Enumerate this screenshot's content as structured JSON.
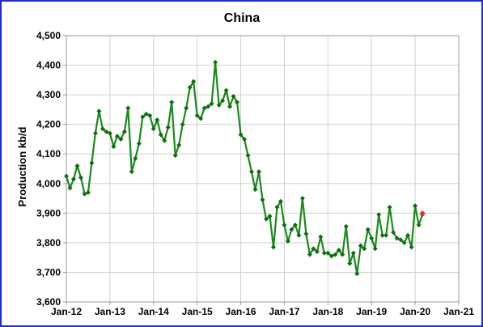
{
  "chart_data": {
    "type": "line",
    "title": "China",
    "xlabel": "",
    "ylabel": "Production kb/d",
    "ylim": [
      3600,
      4500
    ],
    "yticks": [
      3600,
      3700,
      3800,
      3900,
      4000,
      4100,
      4200,
      4300,
      4400,
      4500
    ],
    "ytick_labels": [
      "3,600",
      "3,700",
      "3,800",
      "3,900",
      "4,000",
      "4,100",
      "4,200",
      "4,300",
      "4,400",
      "4,500"
    ],
    "xticks": [
      "Jan-12",
      "Jan-13",
      "Jan-14",
      "Jan-15",
      "Jan-16",
      "Jan-17",
      "Jan-18",
      "Jan-19",
      "Jan-20",
      "Jan-21"
    ],
    "grid": true,
    "legend": "none",
    "colors": {
      "line": "#1a8a1a",
      "marker": "#0d6e0d",
      "highlight": "#ff2a2a",
      "frame": "#1f2bd6"
    },
    "series": [
      {
        "start": "Jan-12",
        "frequency": "monthly",
        "values": [
          4025,
          3985,
          4015,
          4060,
          4020,
          3965,
          3970,
          4070,
          4170,
          4245,
          4185,
          4175,
          4170,
          4125,
          4160,
          4150,
          4175,
          4255,
          4040,
          4085,
          4135,
          4225,
          4235,
          4230,
          4185,
          4215,
          4165,
          4145,
          4190,
          4275,
          4095,
          4130,
          4200,
          4255,
          4325,
          4345,
          4230,
          4220,
          4255,
          4260,
          4270,
          4410,
          4265,
          4280,
          4315,
          4260,
          4295,
          4275,
          4165,
          4150,
          4095,
          4040,
          3980,
          4040,
          3945,
          3880,
          3890,
          3785,
          3920,
          3940,
          3860,
          3805,
          3845,
          3860,
          3825,
          3950,
          3830,
          3760,
          3780,
          3770,
          3820,
          3765,
          3765,
          3755,
          3760,
          3775,
          3760,
          3855,
          3730,
          3765,
          3695,
          3790,
          3780,
          3845,
          3815,
          3780,
          3895,
          3825,
          3825,
          3920,
          3835,
          3815,
          3810,
          3800,
          3825,
          3785,
          3925,
          3860,
          3895
        ]
      },
      {
        "name": "",
        "points": [
          {
            "x": "Mar-20",
            "y": 3900
          }
        ]
      }
    ]
  }
}
